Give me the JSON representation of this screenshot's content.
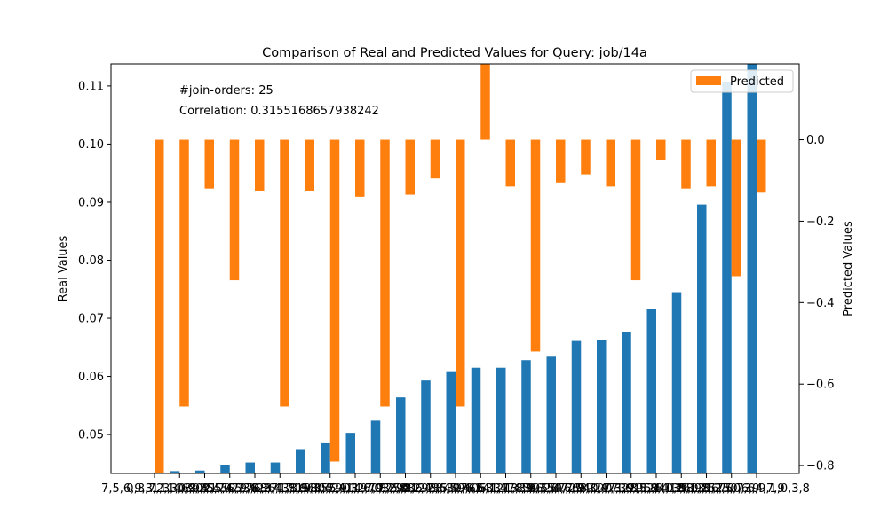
{
  "chart_data": {
    "type": "bar",
    "title": "Comparison of Real and Predicted Values for Query: job/14a",
    "ylabel_left": "Real Values",
    "ylabel_right": "Predicted Values",
    "annotations": [
      "#join-orders: 25",
      "Correlation: 0.3155168657938242"
    ],
    "legend": {
      "placement": "top-right",
      "entries": [
        "Predicted"
      ]
    },
    "grid": false,
    "left_axis": {
      "ylim": [
        0.0433,
        0.1138
      ],
      "ticks": [
        0.05,
        0.06,
        0.07,
        0.08,
        0.09,
        0.1,
        0.11
      ],
      "tick_labels": [
        "0.05",
        "0.06",
        "0.07",
        "0.08",
        "0.09",
        "0.10",
        "0.11"
      ]
    },
    "right_axis": {
      "ylim": [
        -0.8194,
        0.1862
      ],
      "ticks": [
        -0.8,
        -0.6,
        -0.4,
        -0.2,
        0.0
      ],
      "tick_labels": [
        "−0.8",
        "−0.6",
        "−0.4",
        "−0.2",
        "0.0"
      ]
    },
    "categories": [
      "7,5,6,9,3,2,1,0,8,4",
      "0,8,7,1,3,6,9,2,5,4",
      "1,3,4,8,0,5,7,2,9,6",
      "0,9,2,1,5,7,3,6,8,4",
      "3,4,0,5,7,2,6,1,8,9",
      "6,2,4,8,7,3,1,9,0,5",
      "8,2,4,7,1,6,0,5,9,3",
      "1,3,6,8,5,2,0,4,7,9",
      "5,3,4,9,1,2,7,8,6,0",
      "2,4,1,9,0,3,5,8,6,7",
      "1,6,0,7,9,8,2,3,5,4",
      "7,2,8,1,9,3,4,0,6,5",
      "0,2,4,8,3,9,6,5,1,7",
      "2,6,5,7,0,4,3,1,8,9",
      "9,4,1,8,2,7,3,6,5,0",
      "6,1,4,3,5,0,2,9,7,8",
      "1,4,3,6,5,7,2,8,0,9",
      "8,3,5,7,6,4,2,0,1,9",
      "4,6,5,9,0,7,3,8,1,2",
      "9,3,4,7,2,1,5,6,0,8",
      "7,3,6,9,2,4,1,5,0,8",
      "2,5,8,4,3,6,9,1,7,0",
      "4,1,2,8,3,5,7,0,6,9",
      "8,1,2,6,5,0,3,4,7,9",
      "6,2,5,7,6,9,1,0,3,8"
    ],
    "series": [
      {
        "name": "Real",
        "axis": "left",
        "color": "#1f77b4",
        "values": [
          0.0433,
          0.0437,
          0.0438,
          0.0447,
          0.0452,
          0.0452,
          0.0475,
          0.0485,
          0.0503,
          0.0524,
          0.0564,
          0.0593,
          0.0609,
          0.0615,
          0.0615,
          0.0628,
          0.0634,
          0.0661,
          0.0662,
          0.0677,
          0.0716,
          0.0745,
          0.0896,
          0.1107,
          0.1138
        ]
      },
      {
        "name": "Predicted",
        "axis": "right",
        "color": "#ff7f0e",
        "values": [
          -0.82,
          -0.655,
          -0.12,
          -0.345,
          -0.125,
          -0.655,
          -0.125,
          -0.79,
          -0.14,
          -0.655,
          -0.135,
          -0.095,
          -0.655,
          0.186,
          -0.115,
          -0.52,
          -0.105,
          -0.085,
          -0.115,
          -0.345,
          -0.05,
          -0.12,
          -0.115,
          -0.335,
          -0.13
        ]
      }
    ]
  }
}
